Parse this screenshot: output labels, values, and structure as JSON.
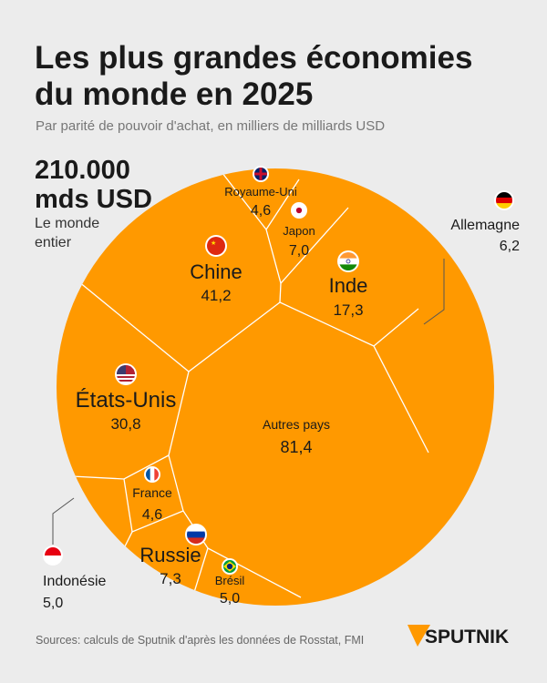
{
  "header": {
    "title_line1": "Les plus grandes économies",
    "title_line2": "du monde en 2025",
    "subtitle": "Par parité de pouvoir d'achat, en milliers de milliards USD"
  },
  "total": {
    "value_line1": "210.000",
    "value_line2": "mds USD",
    "label_line1": "Le monde",
    "label_line2": "entier"
  },
  "footer": {
    "sources": "Sources: calculs de Sputnik d'après les données de Rosstat, FMI",
    "logo": "SPUTNIK"
  },
  "colors": {
    "cell": "#ff9900",
    "border": "#ffffff",
    "background": "#ececec",
    "text": "#1a1a1a"
  },
  "chart_data": {
    "type": "voronoi-treemap",
    "title": "Les plus grandes économies du monde en 2025",
    "unit": "milliers de milliards USD",
    "total": "210.000 mds USD",
    "items": [
      {
        "name": "Chine",
        "value": 41.2,
        "label": "41,2",
        "flag": "china-flag"
      },
      {
        "name": "États-Unis",
        "value": 30.8,
        "label": "30,8",
        "flag": "usa-flag"
      },
      {
        "name": "Inde",
        "value": 17.3,
        "label": "17,3",
        "flag": "india-flag"
      },
      {
        "name": "Russie",
        "value": 7.3,
        "label": "7,3",
        "flag": "russia-flag"
      },
      {
        "name": "Japon",
        "value": 7.0,
        "label": "7,0",
        "flag": "japan-flag"
      },
      {
        "name": "Allemagne",
        "value": 6.2,
        "label": "6,2",
        "flag": "germany-flag"
      },
      {
        "name": "Indonésie",
        "value": 5.0,
        "label": "5,0",
        "flag": "indonesia-flag"
      },
      {
        "name": "Brésil",
        "value": 5.0,
        "label": "5,0",
        "flag": "brazil-flag"
      },
      {
        "name": "Royaume-Uni",
        "value": 4.6,
        "label": "4,6",
        "flag": "uk-flag"
      },
      {
        "name": "France",
        "value": 4.6,
        "label": "4,6",
        "flag": "france-flag"
      },
      {
        "name": "Autres pays",
        "value": 81.4,
        "label": "81,4",
        "flag": ""
      }
    ]
  }
}
